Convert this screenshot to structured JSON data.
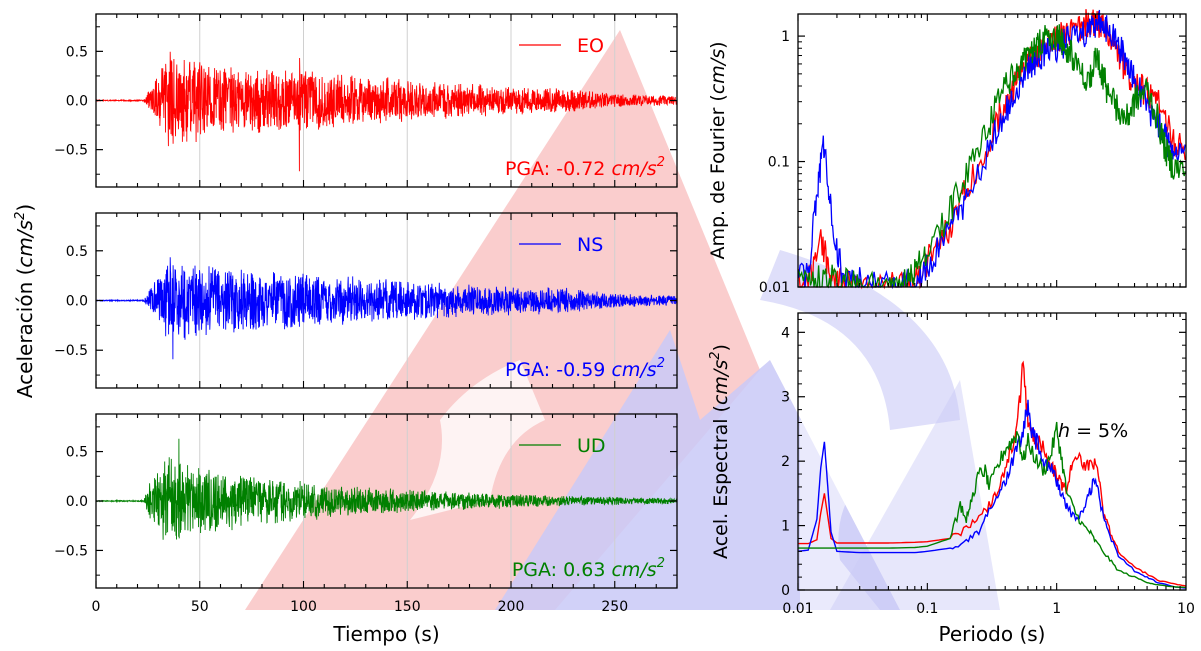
{
  "chart_data": [
    {
      "type": "line",
      "component": "EO",
      "legend": "EO",
      "annotation": {
        "prefix": "PGA: ",
        "value": "-0.72",
        "unit": "cm/s",
        "exponent": "2"
      },
      "color": "#ff0000",
      "xlim": [
        0,
        280
      ],
      "ylim": [
        -0.88,
        0.88
      ],
      "yticks": [
        0.5,
        0.0,
        -0.5
      ],
      "ytick_labels": [
        "0.5",
        "0.0",
        "−0.5"
      ],
      "xticks": [
        0,
        50,
        100,
        150,
        200,
        250
      ],
      "xtick_labels": [],
      "grid_x": true,
      "signal": {
        "quiet_until": 23,
        "onset": 27,
        "peak_time": 98,
        "pga": -0.72,
        "envelope": [
          [
            0,
            0.004
          ],
          [
            23,
            0.006
          ],
          [
            27,
            0.15
          ],
          [
            35,
            0.5
          ],
          [
            60,
            0.38
          ],
          [
            100,
            0.32
          ],
          [
            140,
            0.24
          ],
          [
            180,
            0.17
          ],
          [
            225,
            0.13
          ],
          [
            250,
            0.07
          ],
          [
            280,
            0.05
          ]
        ]
      }
    },
    {
      "type": "line",
      "component": "NS",
      "legend": "NS",
      "annotation": {
        "prefix": "PGA: ",
        "value": "-0.59",
        "unit": "cm/s",
        "exponent": "2"
      },
      "color": "#0000ff",
      "xlim": [
        0,
        280
      ],
      "ylim": [
        -0.88,
        0.88
      ],
      "yticks": [
        0.5,
        0.0,
        -0.5
      ],
      "ytick_labels": [
        "0.5",
        "0.0",
        "−0.5"
      ],
      "xticks": [
        0,
        50,
        100,
        150,
        200,
        250
      ],
      "xtick_labels": [],
      "grid_x": true,
      "signal": {
        "quiet_until": 23,
        "onset": 27,
        "peak_time": 37,
        "pga": -0.59,
        "envelope": [
          [
            0,
            0.004
          ],
          [
            23,
            0.006
          ],
          [
            27,
            0.15
          ],
          [
            35,
            0.45
          ],
          [
            60,
            0.33
          ],
          [
            100,
            0.28
          ],
          [
            140,
            0.22
          ],
          [
            180,
            0.16
          ],
          [
            225,
            0.14
          ],
          [
            250,
            0.07
          ],
          [
            280,
            0.05
          ]
        ]
      }
    },
    {
      "type": "line",
      "component": "UD",
      "legend": "UD",
      "annotation": {
        "prefix": "PGA: ",
        "value": "0.63",
        "unit": "cm/s",
        "exponent": "2"
      },
      "color": "#008000",
      "xlim": [
        0,
        280
      ],
      "ylim": [
        -0.88,
        0.88
      ],
      "yticks": [
        0.5,
        0.0,
        -0.5
      ],
      "ytick_labels": [
        "0.5",
        "0.0",
        "−0.5"
      ],
      "xticks": [
        0,
        50,
        100,
        150,
        200,
        250
      ],
      "xtick_labels": [
        "0",
        "50",
        "100",
        "150",
        "200",
        "250"
      ],
      "grid_x": true,
      "xlabel": "Tiempo (s)",
      "signal": {
        "quiet_until": 23,
        "onset": 26,
        "peak_time": 40,
        "pga": 0.63,
        "envelope": [
          [
            0,
            0.004
          ],
          [
            23,
            0.006
          ],
          [
            26,
            0.2
          ],
          [
            33,
            0.5
          ],
          [
            50,
            0.35
          ],
          [
            90,
            0.22
          ],
          [
            140,
            0.13
          ],
          [
            180,
            0.09
          ],
          [
            230,
            0.05
          ],
          [
            280,
            0.03
          ]
        ]
      }
    },
    {
      "type": "line",
      "title_axis": "Fourier",
      "xscale": "log",
      "yscale": "log",
      "xlim": [
        0.01,
        10
      ],
      "ylim": [
        0.01,
        1.5
      ],
      "yticks": [
        0.01,
        0.1,
        1
      ],
      "ytick_labels": [
        "0.01",
        "0.1",
        "1"
      ],
      "xtick_labels": [],
      "ylabel": "Amp. de Fourier",
      "ylabel_unit": "cm/s",
      "series": [
        {
          "color": "#ff0000",
          "x": [
            0.008,
            0.012,
            0.015,
            0.018,
            0.022,
            0.03,
            0.05,
            0.08,
            0.1,
            0.15,
            0.2,
            0.3,
            0.4,
            0.5,
            0.6,
            0.7,
            0.8,
            1.0,
            1.2,
            1.5,
            1.8,
            2.0,
            2.2,
            2.5,
            3.0,
            3.5,
            4.0,
            5.0,
            6.0,
            8.0,
            10.0
          ],
          "y": [
            0.012,
            0.011,
            0.025,
            0.012,
            0.011,
            0.01,
            0.01,
            0.011,
            0.016,
            0.03,
            0.06,
            0.15,
            0.3,
            0.45,
            0.6,
            0.7,
            0.8,
            0.95,
            1.05,
            1.15,
            1.3,
            1.2,
            1.25,
            1.0,
            0.7,
            0.5,
            0.42,
            0.35,
            0.3,
            0.15,
            0.11
          ]
        },
        {
          "color": "#0000ff",
          "x": [
            0.008,
            0.012,
            0.014,
            0.016,
            0.018,
            0.022,
            0.03,
            0.05,
            0.08,
            0.1,
            0.15,
            0.2,
            0.3,
            0.4,
            0.5,
            0.6,
            0.7,
            0.8,
            1.0,
            1.2,
            1.5,
            1.8,
            2.0,
            2.2,
            2.5,
            3.0,
            3.5,
            4.0,
            5.0,
            6.0,
            7.0,
            8.0,
            10.0
          ],
          "y": [
            0.012,
            0.012,
            0.06,
            0.14,
            0.04,
            0.012,
            0.011,
            0.01,
            0.011,
            0.014,
            0.028,
            0.05,
            0.13,
            0.25,
            0.4,
            0.55,
            0.65,
            0.72,
            0.82,
            0.9,
            1.0,
            1.15,
            1.25,
            1.3,
            1.1,
            0.85,
            0.6,
            0.45,
            0.28,
            0.2,
            0.15,
            0.1,
            0.12
          ]
        },
        {
          "color": "#008000",
          "x": [
            0.008,
            0.012,
            0.016,
            0.022,
            0.03,
            0.05,
            0.07,
            0.08,
            0.1,
            0.15,
            0.2,
            0.3,
            0.4,
            0.5,
            0.6,
            0.7,
            0.8,
            1.0,
            1.1,
            1.3,
            1.5,
            1.8,
            2.0,
            2.2,
            2.5,
            3.0,
            3.5,
            4.0,
            5.0,
            6.0,
            7.0,
            8.0,
            10.0
          ],
          "y": [
            0.012,
            0.011,
            0.012,
            0.011,
            0.01,
            0.01,
            0.011,
            0.013,
            0.02,
            0.04,
            0.08,
            0.2,
            0.4,
            0.55,
            0.7,
            0.8,
            0.95,
            1.05,
            0.9,
            0.7,
            0.55,
            0.45,
            0.75,
            0.55,
            0.35,
            0.25,
            0.22,
            0.3,
            0.38,
            0.22,
            0.12,
            0.09,
            0.085
          ]
        }
      ]
    },
    {
      "type": "line",
      "title_axis": "Spectral",
      "xscale": "log",
      "xlim": [
        0.01,
        10
      ],
      "ylim": [
        0,
        4.3
      ],
      "yticks": [
        0,
        1,
        2,
        3,
        4
      ],
      "ytick_labels": [
        "0",
        "1",
        "2",
        "3",
        "4"
      ],
      "xticks": [
        0.01,
        0.1,
        1,
        10
      ],
      "xtick_labels": [
        "0.01",
        "0.1",
        "1",
        "10"
      ],
      "xlabel": "Periodo (s)",
      "ylabel": "Acel. Espectral",
      "ylabel_unit": "cm/s",
      "ylabel_exponent": "2",
      "annotation": {
        "symbol": "h",
        "text": " = 5%"
      },
      "series": [
        {
          "color": "#ff0000",
          "x": [
            0.01,
            0.012,
            0.014,
            0.015,
            0.016,
            0.018,
            0.02,
            0.03,
            0.05,
            0.08,
            0.1,
            0.15,
            0.2,
            0.25,
            0.3,
            0.35,
            0.4,
            0.45,
            0.5,
            0.55,
            0.6,
            0.65,
            0.7,
            0.8,
            0.9,
            1.0,
            1.1,
            1.2,
            1.3,
            1.5,
            1.7,
            1.9,
            2.1,
            2.3,
            2.6,
            3.0,
            4.0,
            5.0,
            6.0,
            8.0,
            10.0
          ],
          "y": [
            0.72,
            0.72,
            0.78,
            1.2,
            1.5,
            0.8,
            0.73,
            0.73,
            0.73,
            0.74,
            0.75,
            0.8,
            0.95,
            1.1,
            1.3,
            1.5,
            1.9,
            2.2,
            2.6,
            3.45,
            2.6,
            2.4,
            2.3,
            2.2,
            1.9,
            1.8,
            1.6,
            1.5,
            1.9,
            2.0,
            1.9,
            2.0,
            1.8,
            1.2,
            0.9,
            0.6,
            0.35,
            0.25,
            0.15,
            0.1,
            0.06
          ]
        },
        {
          "color": "#0000ff",
          "x": [
            0.01,
            0.012,
            0.014,
            0.015,
            0.016,
            0.017,
            0.018,
            0.02,
            0.03,
            0.05,
            0.08,
            0.1,
            0.15,
            0.2,
            0.25,
            0.3,
            0.35,
            0.4,
            0.45,
            0.5,
            0.55,
            0.6,
            0.65,
            0.7,
            0.8,
            0.9,
            1.0,
            1.1,
            1.2,
            1.4,
            1.6,
            1.8,
            2.0,
            2.2,
            2.5,
            3.0,
            4.0,
            5.0,
            6.0,
            8.0,
            10.0
          ],
          "y": [
            0.6,
            0.62,
            1.1,
            1.9,
            2.3,
            1.6,
            0.9,
            0.6,
            0.58,
            0.58,
            0.58,
            0.6,
            0.65,
            0.75,
            0.9,
            1.2,
            1.4,
            1.7,
            2.0,
            2.2,
            2.4,
            2.9,
            2.4,
            2.3,
            2.0,
            1.9,
            1.7,
            1.5,
            1.3,
            1.1,
            1.2,
            1.5,
            1.8,
            1.3,
            0.9,
            0.55,
            0.3,
            0.2,
            0.12,
            0.05,
            0.03
          ]
        },
        {
          "color": "#008000",
          "x": [
            0.01,
            0.012,
            0.015,
            0.02,
            0.03,
            0.05,
            0.08,
            0.1,
            0.15,
            0.18,
            0.2,
            0.22,
            0.25,
            0.28,
            0.3,
            0.35,
            0.4,
            0.45,
            0.5,
            0.55,
            0.6,
            0.7,
            0.8,
            0.9,
            1.0,
            1.1,
            1.2,
            1.4,
            1.6,
            1.8,
            2.0,
            2.5,
            3.0,
            4.0,
            5.0,
            6.0,
            8.0,
            10.0
          ],
          "y": [
            0.65,
            0.65,
            0.65,
            0.65,
            0.65,
            0.65,
            0.66,
            0.68,
            0.8,
            1.3,
            1.1,
            1.4,
            1.8,
            1.85,
            1.6,
            1.9,
            2.2,
            2.3,
            2.45,
            2.0,
            2.3,
            2.0,
            1.85,
            2.1,
            2.5,
            2.0,
            1.5,
            1.2,
            1.0,
            0.9,
            0.75,
            0.5,
            0.3,
            0.2,
            0.12,
            0.08,
            0.05,
            0.04
          ]
        }
      ]
    }
  ],
  "shared": {
    "left_ylabel": "Aceleración",
    "left_ylabel_unit": "cm/s",
    "left_ylabel_exponent": "2"
  }
}
